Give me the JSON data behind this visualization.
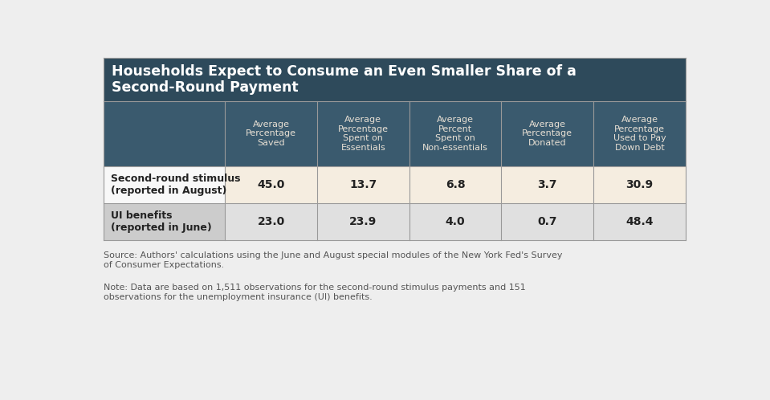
{
  "title": "Households Expect to Consume an Even Smaller Share of a\nSecond-Round Payment",
  "col_headers": [
    "Average\nPercentage\nSaved",
    "Average\nPercentage\nSpent on\nEssentials",
    "Average\nPercent\nSpent on\nNon-essentials",
    "Average\nPercentage\nDonated",
    "Average\nPercentage\nUsed to Pay\nDown Debt"
  ],
  "row_labels": [
    "Second-round stimulus\n(reported in August)",
    "UI benefits\n(reported in June)"
  ],
  "data": [
    [
      "45.0",
      "13.7",
      "6.8",
      "3.7",
      "30.9"
    ],
    [
      "23.0",
      "23.9",
      "4.0",
      "0.7",
      "48.4"
    ]
  ],
  "source_text": "Source: Authors' calculations using the June and August special modules of the New York Fed's Survey\nof Consumer Expectations.",
  "note_text": "Note: Data are based on 1,511 observations for the second-round stimulus payments and 151\nobservations for the unemployment insurance (UI) benefits.",
  "title_bg": "#2e4a5b",
  "header_bg": "#3a5a6e",
  "header_text_color": "#e8e0d4",
  "row1_label_bg": "#f8f8f8",
  "row2_label_bg": "#cccccc",
  "row1_cell_bg": "#f5ede0",
  "row2_cell_bg": "#e0e0e0",
  "cell_text_color": "#222222",
  "grid_color": "#999999",
  "footer_text_color": "#555555",
  "outer_bg": "#eeeeee",
  "title_text_color": "#ffffff"
}
